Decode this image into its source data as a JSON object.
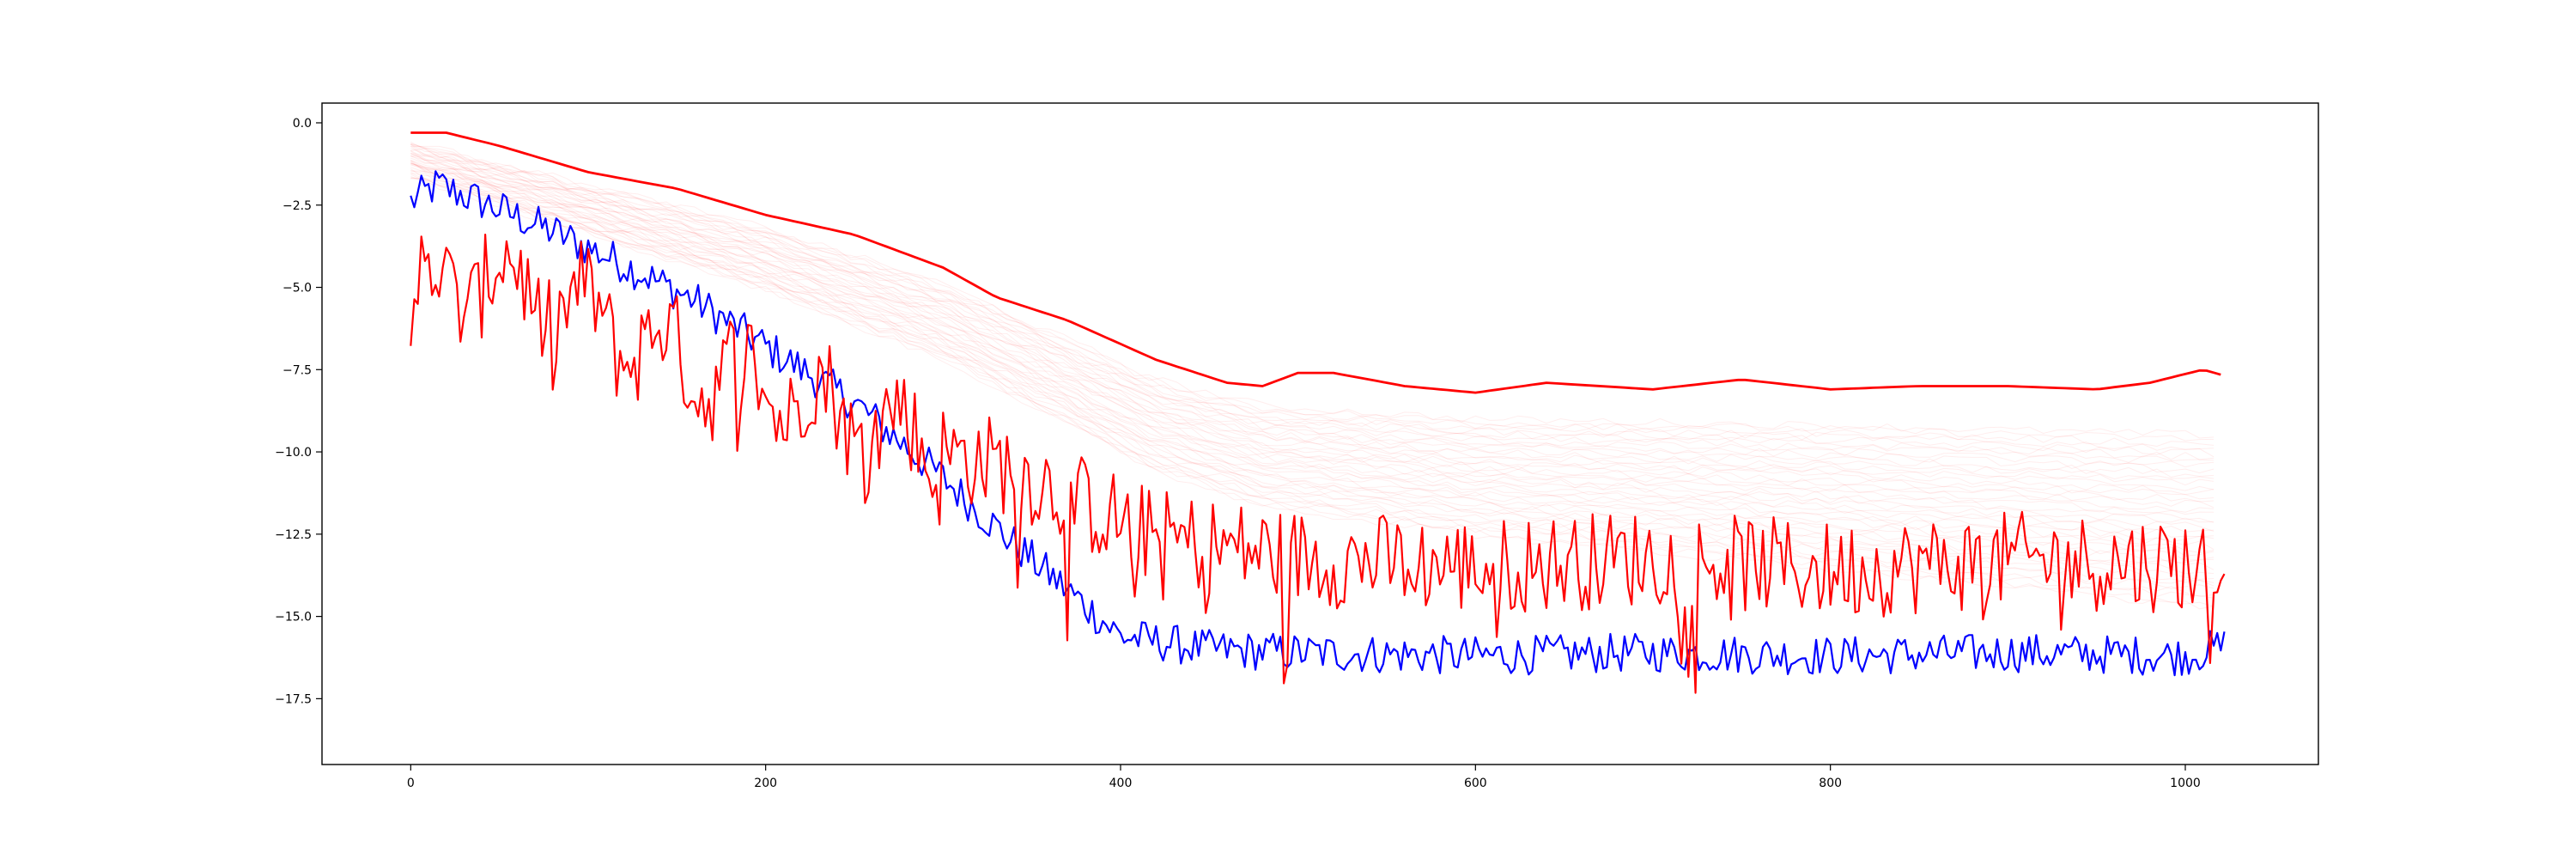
{
  "chart_data": {
    "type": "line",
    "title": "",
    "xlabel": "",
    "ylabel": "",
    "xlim": [
      -50,
      1075
    ],
    "ylim": [
      -19.5,
      0.6
    ],
    "grid": false,
    "legend": "none",
    "x_ticks": [
      0,
      200,
      400,
      600,
      800,
      1000
    ],
    "x_tick_labels": [
      "0",
      "200",
      "400",
      "600",
      "800",
      "1000"
    ],
    "y_ticks": [
      0.0,
      -2.5,
      -5.0,
      -7.5,
      -10.0,
      -12.5,
      -15.0,
      -17.5
    ],
    "y_tick_labels": [
      "0.0",
      "−2.5",
      "−5.0",
      "−7.5",
      "−10.0",
      "−12.5",
      "−15.0",
      "−17.5"
    ],
    "x_range": [
      0,
      1023
    ],
    "series": [
      {
        "color": "#ff0000",
        "style": "envelope (bold upper line)",
        "points": [
          [
            0,
            -0.3
          ],
          [
            20,
            -0.3
          ],
          [
            50,
            -0.7
          ],
          [
            100,
            -1.5
          ],
          [
            150,
            -2.0
          ],
          [
            200,
            -2.8
          ],
          [
            250,
            -3.4
          ],
          [
            300,
            -4.4
          ],
          [
            330,
            -5.3
          ],
          [
            370,
            -6.0
          ],
          [
            420,
            -7.2
          ],
          [
            460,
            -7.9
          ],
          [
            480,
            -8.0
          ],
          [
            500,
            -7.6
          ],
          [
            520,
            -7.6
          ],
          [
            560,
            -8.0
          ],
          [
            600,
            -8.2
          ],
          [
            640,
            -7.9
          ],
          [
            700,
            -8.1
          ],
          [
            750,
            -7.8
          ],
          [
            800,
            -8.1
          ],
          [
            850,
            -8.0
          ],
          [
            900,
            -8.0
          ],
          [
            950,
            -8.1
          ],
          [
            980,
            -7.9
          ],
          [
            1010,
            -7.5
          ],
          [
            1023,
            -7.7
          ]
        ]
      },
      {
        "color": "#0000ff",
        "style": "noisy",
        "points": [
          [
            0,
            -2.4
          ],
          [
            15,
            -1.9
          ],
          [
            40,
            -2.4
          ],
          [
            80,
            -3.3
          ],
          [
            120,
            -4.3
          ],
          [
            160,
            -5.4
          ],
          [
            200,
            -6.8
          ],
          [
            250,
            -8.5
          ],
          [
            300,
            -10.8
          ],
          [
            340,
            -12.8
          ],
          [
            370,
            -14.2
          ],
          [
            400,
            -15.6
          ],
          [
            450,
            -16.0
          ],
          [
            500,
            -16.1
          ],
          [
            600,
            -16.2
          ],
          [
            700,
            -16.1
          ],
          [
            800,
            -16.2
          ],
          [
            900,
            -16.1
          ],
          [
            1000,
            -16.2
          ],
          [
            1023,
            -15.9
          ]
        ],
        "noise_amplitude": 0.6
      },
      {
        "color": "#ff0000",
        "style": "noisy oscillating",
        "points": [
          [
            0,
            -5.5
          ],
          [
            40,
            -4.6
          ],
          [
            80,
            -5.4
          ],
          [
            120,
            -6.4
          ],
          [
            160,
            -7.4
          ],
          [
            200,
            -8.0
          ],
          [
            250,
            -8.9
          ],
          [
            300,
            -10.0
          ],
          [
            340,
            -10.5
          ],
          [
            380,
            -11.6
          ],
          [
            420,
            -12.6
          ],
          [
            500,
            -13.2
          ],
          [
            600,
            -13.5
          ],
          [
            700,
            -13.2
          ],
          [
            800,
            -13.6
          ],
          [
            900,
            -13.3
          ],
          [
            1000,
            -13.4
          ],
          [
            1023,
            -13.6
          ]
        ],
        "noise_amplitude": 1.5
      },
      {
        "color": "#ff0000",
        "style": "faint band (many light curves)",
        "opacity": 0.07,
        "points": [
          [
            0,
            -0.6
          ],
          [
            100,
            -1.9
          ],
          [
            200,
            -3.2
          ],
          [
            300,
            -4.9
          ],
          [
            420,
            -7.8
          ],
          [
            480,
            -8.6
          ],
          [
            600,
            -9.0
          ],
          [
            800,
            -9.2
          ],
          [
            1023,
            -9.5
          ]
        ]
      }
    ]
  }
}
